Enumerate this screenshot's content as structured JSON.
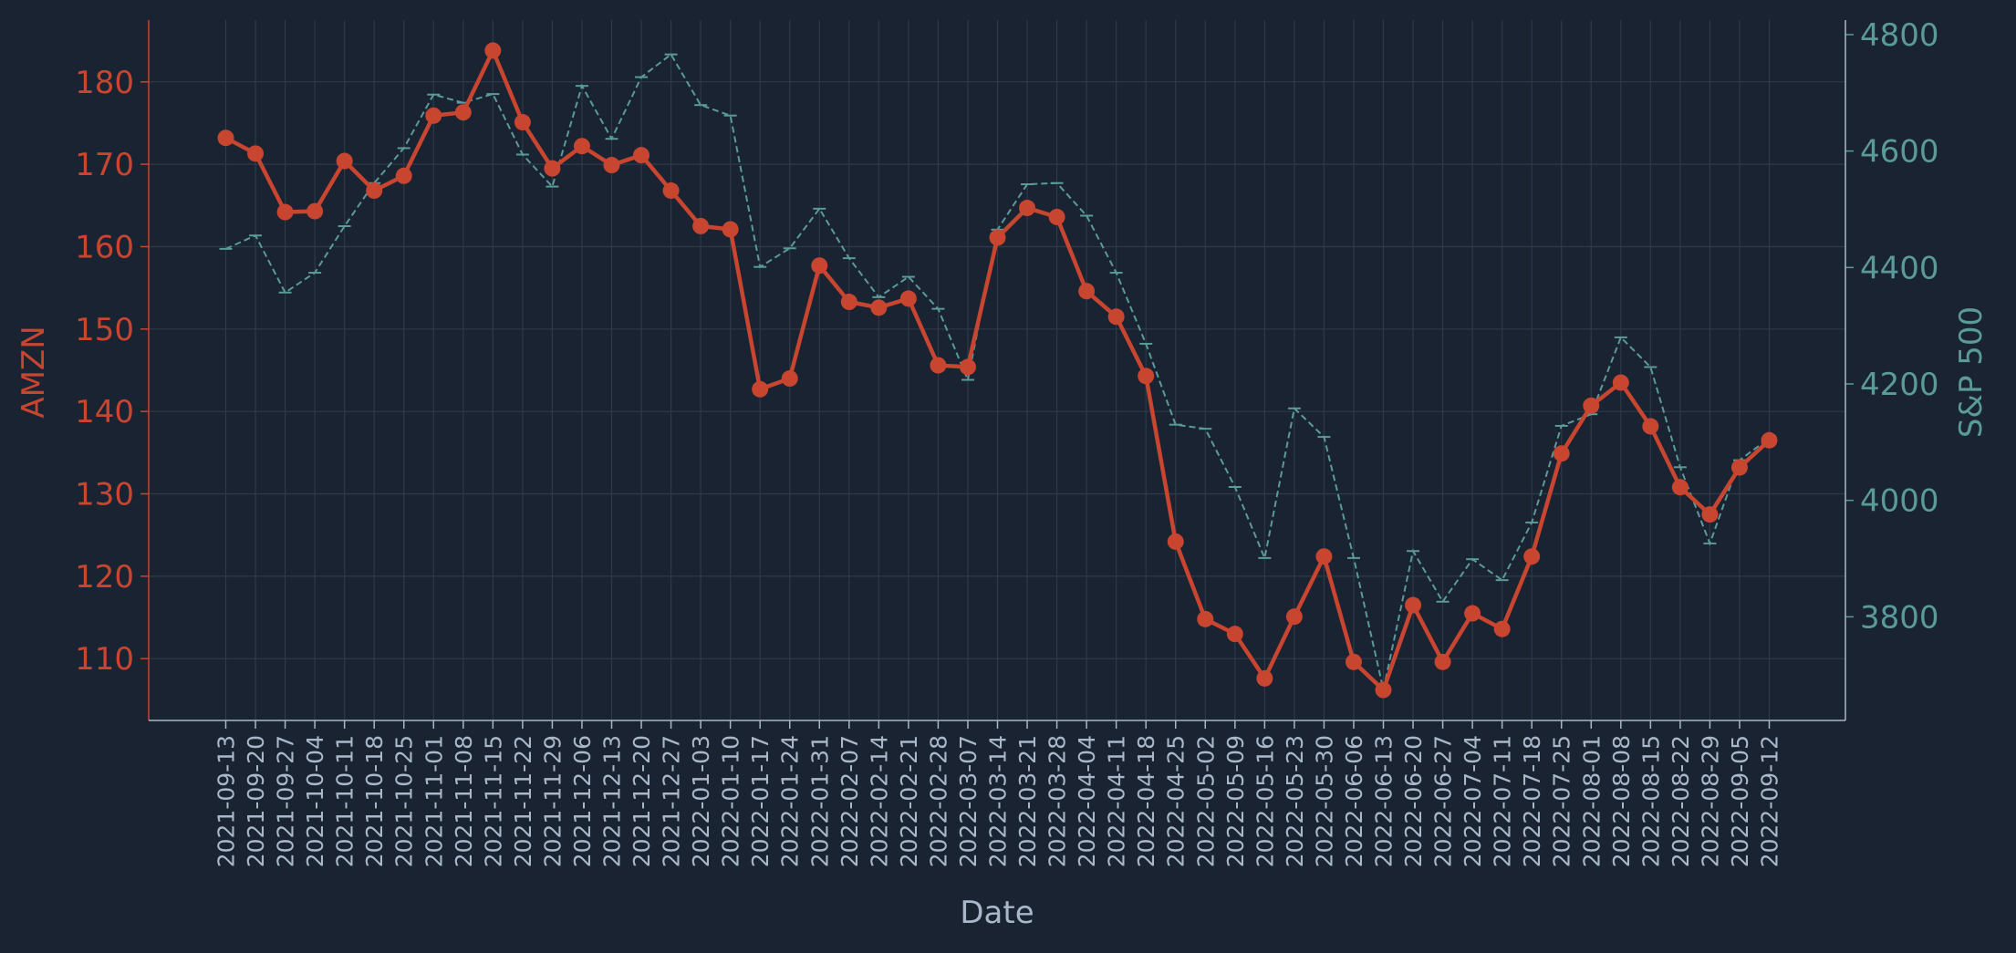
{
  "colors": {
    "background": "#1a2332",
    "amzn": "#c84530",
    "sp500": "#5a9a98",
    "axis_text": "#a8b8c8",
    "grid": "#2c3a4a"
  },
  "chart_data": {
    "type": "line",
    "xlabel": "Date",
    "ylabel_left": "AMZN",
    "ylabel_right": "S&P 500",
    "ylim_left": [
      102.5,
      187.5
    ],
    "ylim_right": [
      3622,
      4825
    ],
    "yticks_left": [
      110,
      120,
      130,
      140,
      150,
      160,
      170,
      180
    ],
    "yticks_right": [
      3800,
      4000,
      4200,
      4400,
      4600,
      4800
    ],
    "grid": true,
    "categories": [
      "2021-09-13",
      "2021-09-20",
      "2021-09-27",
      "2021-10-04",
      "2021-10-11",
      "2021-10-18",
      "2021-10-25",
      "2021-11-01",
      "2021-11-08",
      "2021-11-15",
      "2021-11-22",
      "2021-11-29",
      "2021-12-06",
      "2021-12-13",
      "2021-12-20",
      "2021-12-27",
      "2022-01-03",
      "2022-01-10",
      "2022-01-17",
      "2022-01-24",
      "2022-01-31",
      "2022-02-07",
      "2022-02-14",
      "2022-02-21",
      "2022-02-28",
      "2022-03-07",
      "2022-03-14",
      "2022-03-21",
      "2022-03-28",
      "2022-04-04",
      "2022-04-11",
      "2022-04-18",
      "2022-04-25",
      "2022-05-02",
      "2022-05-09",
      "2022-05-16",
      "2022-05-23",
      "2022-05-30",
      "2022-06-06",
      "2022-06-13",
      "2022-06-20",
      "2022-06-27",
      "2022-07-04",
      "2022-07-11",
      "2022-07-18",
      "2022-07-25",
      "2022-08-01",
      "2022-08-08",
      "2022-08-15",
      "2022-08-22",
      "2022-08-29",
      "2022-09-05",
      "2022-09-12"
    ],
    "series": [
      {
        "name": "AMZN",
        "axis": "left",
        "style": "solid-marker",
        "values": [
          173.2,
          171.3,
          164.2,
          164.3,
          170.4,
          166.8,
          168.6,
          175.9,
          176.3,
          183.8,
          175.1,
          169.5,
          172.2,
          169.9,
          171.1,
          166.8,
          162.5,
          162.1,
          142.7,
          144.0,
          157.7,
          153.3,
          152.6,
          153.7,
          145.6,
          145.4,
          161.1,
          164.7,
          163.6,
          154.6,
          151.5,
          144.3,
          124.2,
          114.8,
          113.0,
          107.6,
          115.1,
          122.4,
          109.6,
          106.2,
          116.5,
          109.6,
          115.5,
          113.6,
          122.4,
          134.9,
          140.7,
          143.5,
          138.2,
          130.8,
          127.5,
          133.2,
          136.5
        ]
      },
      {
        "name": "S&P 500",
        "axis": "right",
        "style": "dashed",
        "values": [
          4432,
          4455,
          4357,
          4391,
          4471,
          4545,
          4605,
          4697,
          4683,
          4698,
          4594,
          4539,
          4712,
          4621,
          4727,
          4766,
          4679,
          4661,
          4401,
          4433,
          4501,
          4416,
          4349,
          4384,
          4329,
          4207,
          4465,
          4543,
          4545,
          4489,
          4391,
          4269,
          4130,
          4123,
          4023,
          3901,
          4158,
          4109,
          3901,
          3675,
          3913,
          3826,
          3899,
          3863,
          3962,
          4128,
          4148,
          4280,
          4229,
          4057,
          3926,
          4069,
          4107
        ]
      }
    ]
  }
}
